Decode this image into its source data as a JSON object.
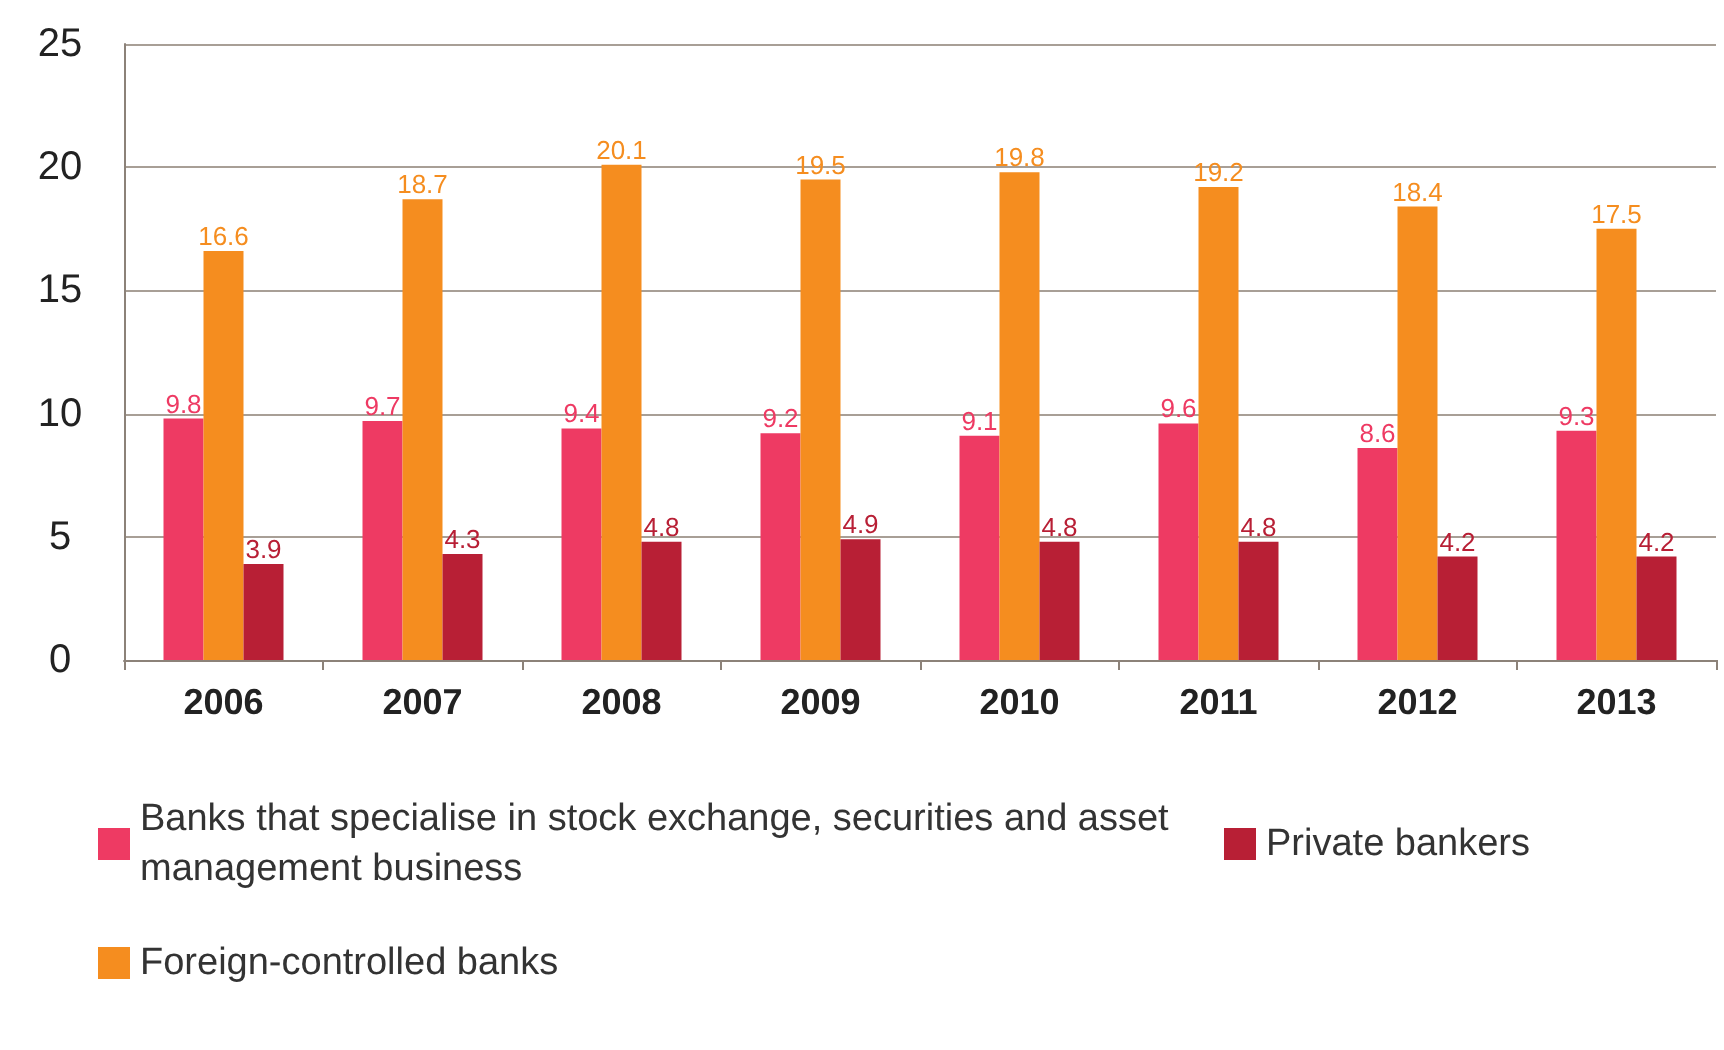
{
  "chart_data": {
    "type": "bar",
    "categories": [
      "2006",
      "2007",
      "2008",
      "2009",
      "2010",
      "2011",
      "2012",
      "2013"
    ],
    "series": [
      {
        "name": "Banks that specialise in stock exchange, securities and asset management business",
        "color": "#ee3a63",
        "values": [
          9.8,
          9.7,
          9.4,
          9.2,
          9.1,
          9.6,
          8.6,
          9.3
        ]
      },
      {
        "name": "Foreign-controlled banks",
        "color": "#f58d1f",
        "values": [
          16.6,
          18.7,
          20.1,
          19.5,
          19.8,
          19.2,
          18.4,
          17.5
        ]
      },
      {
        "name": "Private bankers",
        "color": "#b81f35",
        "values": [
          3.9,
          4.3,
          4.8,
          4.9,
          4.8,
          4.8,
          4.2,
          4.2
        ]
      }
    ],
    "ylim": [
      0,
      25
    ],
    "yticks": [
      0,
      5,
      10,
      15,
      20,
      25
    ],
    "grid": "y",
    "legend": "bottom left",
    "data_labels": true
  }
}
